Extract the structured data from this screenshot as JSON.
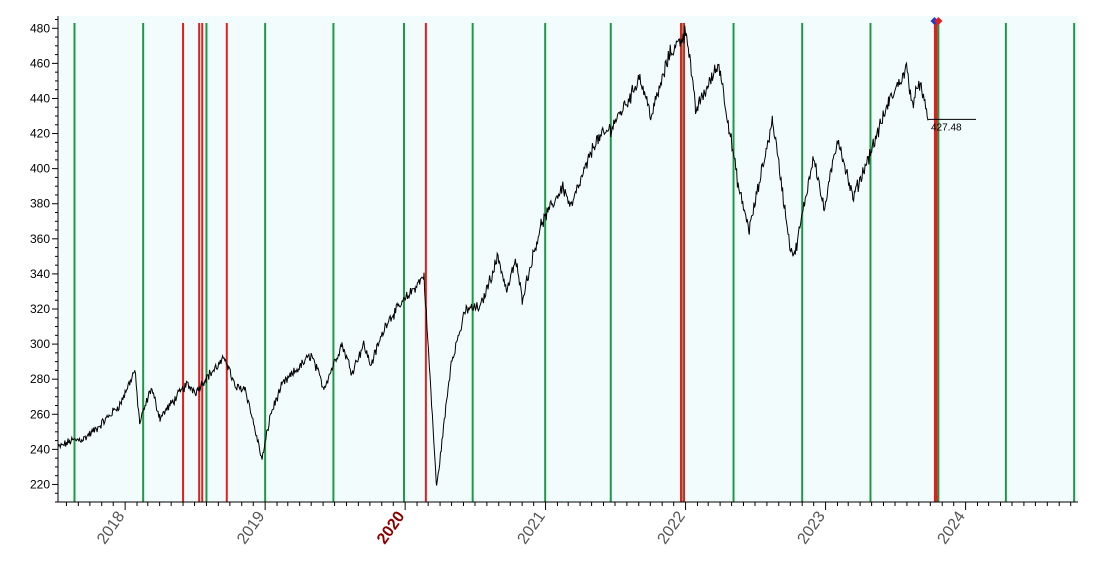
{
  "chart_data": {
    "type": "line",
    "title": "",
    "xlabel": "",
    "ylabel": "",
    "x_range": [
      "2017-07-10",
      "2024-10-20"
    ],
    "ylim": [
      210,
      487
    ],
    "y_ticks": [
      220,
      240,
      260,
      280,
      300,
      320,
      340,
      360,
      380,
      400,
      420,
      440,
      460,
      480
    ],
    "x_tick_labels": [
      {
        "label": "2018",
        "date": "2018-01-01",
        "highlight": false
      },
      {
        "label": "2019",
        "date": "2019-01-01",
        "highlight": false
      },
      {
        "label": "2020",
        "date": "2020-01-01",
        "highlight": true
      },
      {
        "label": "2021",
        "date": "2021-01-01",
        "highlight": false
      },
      {
        "label": "2022",
        "date": "2022-01-01",
        "highlight": false
      },
      {
        "label": "2023",
        "date": "2023-01-01",
        "highlight": false
      },
      {
        "label": "2024",
        "date": "2024-01-01",
        "highlight": false
      }
    ],
    "series": [
      {
        "points": [
          [
            "2017-07-10",
            241
          ],
          [
            "2017-08-15",
            245
          ],
          [
            "2017-09-15",
            246
          ],
          [
            "2017-10-20",
            252
          ],
          [
            "2017-11-20",
            259
          ],
          [
            "2017-12-20",
            266
          ],
          [
            "2018-01-26",
            285
          ],
          [
            "2018-02-08",
            255
          ],
          [
            "2018-03-10",
            275
          ],
          [
            "2018-04-02",
            258
          ],
          [
            "2018-05-01",
            266
          ],
          [
            "2018-06-10",
            277
          ],
          [
            "2018-07-05",
            273
          ],
          [
            "2018-08-01",
            281
          ],
          [
            "2018-09-20",
            292
          ],
          [
            "2018-10-15",
            275
          ],
          [
            "2018-11-10",
            275
          ],
          [
            "2018-12-24",
            234
          ],
          [
            "2019-01-15",
            260
          ],
          [
            "2019-02-15",
            277
          ],
          [
            "2019-04-01",
            287
          ],
          [
            "2019-05-01",
            294
          ],
          [
            "2019-06-03",
            275
          ],
          [
            "2019-07-20",
            300
          ],
          [
            "2019-08-15",
            284
          ],
          [
            "2019-09-15",
            300
          ],
          [
            "2019-10-03",
            288
          ],
          [
            "2019-11-15",
            313
          ],
          [
            "2019-12-20",
            322
          ],
          [
            "2020-02-19",
            339
          ],
          [
            "2020-03-23",
            218
          ],
          [
            "2020-04-30",
            290
          ],
          [
            "2020-06-08",
            320
          ],
          [
            "2020-07-15",
            321
          ],
          [
            "2020-08-30",
            350
          ],
          [
            "2020-09-22",
            330
          ],
          [
            "2020-10-15",
            348
          ],
          [
            "2020-11-01",
            326
          ],
          [
            "2020-12-20",
            368
          ],
          [
            "2021-02-15",
            390
          ],
          [
            "2021-03-08",
            378
          ],
          [
            "2021-05-10",
            415
          ],
          [
            "2021-06-20",
            423
          ],
          [
            "2021-08-15",
            443
          ],
          [
            "2021-09-02",
            453
          ],
          [
            "2021-10-04",
            430
          ],
          [
            "2021-11-20",
            465
          ],
          [
            "2021-12-30",
            477
          ],
          [
            "2022-01-04",
            478
          ],
          [
            "2022-01-27",
            433
          ],
          [
            "2022-03-29",
            460
          ],
          [
            "2022-05-20",
            388
          ],
          [
            "2022-06-16",
            365
          ],
          [
            "2022-08-16",
            428
          ],
          [
            "2022-09-30",
            356
          ],
          [
            "2022-10-12",
            350
          ],
          [
            "2022-12-01",
            408
          ],
          [
            "2022-12-28",
            376
          ],
          [
            "2023-02-02",
            418
          ],
          [
            "2023-03-13",
            383
          ],
          [
            "2023-05-01",
            411
          ],
          [
            "2023-06-15",
            438
          ],
          [
            "2023-07-31",
            457
          ],
          [
            "2023-08-18",
            435
          ],
          [
            "2023-09-01",
            451
          ],
          [
            "2023-09-25",
            427.48
          ]
        ]
      }
    ],
    "green_vlines": [
      "2017-08-22",
      "2018-02-17",
      "2018-08-01",
      "2019-01-01",
      "2019-06-28",
      "2019-12-29",
      "2020-06-25",
      "2020-12-31",
      "2021-06-20",
      "2021-12-22",
      "2022-05-06",
      "2022-11-01",
      "2023-04-28",
      "2023-10-22",
      "2024-04-15",
      "2024-10-10"
    ],
    "red_vlines": [
      "2018-06-01",
      "2018-07-13",
      "2018-07-21",
      "2018-09-23",
      "2020-02-24",
      "2021-12-20",
      "2021-12-28",
      "2023-10-13",
      "2023-10-17"
    ],
    "last_price": 427.48,
    "last_price_label": "427.48",
    "grid": false,
    "colors": {
      "plot_background": "#f3fcfc",
      "price_line": "#000000",
      "green_line": "#1e9a47",
      "red_line": "#e0201f",
      "highlight_year": "#8b0000",
      "marker_blue": "#1f3fcc",
      "marker_red": "#e0201f"
    }
  }
}
